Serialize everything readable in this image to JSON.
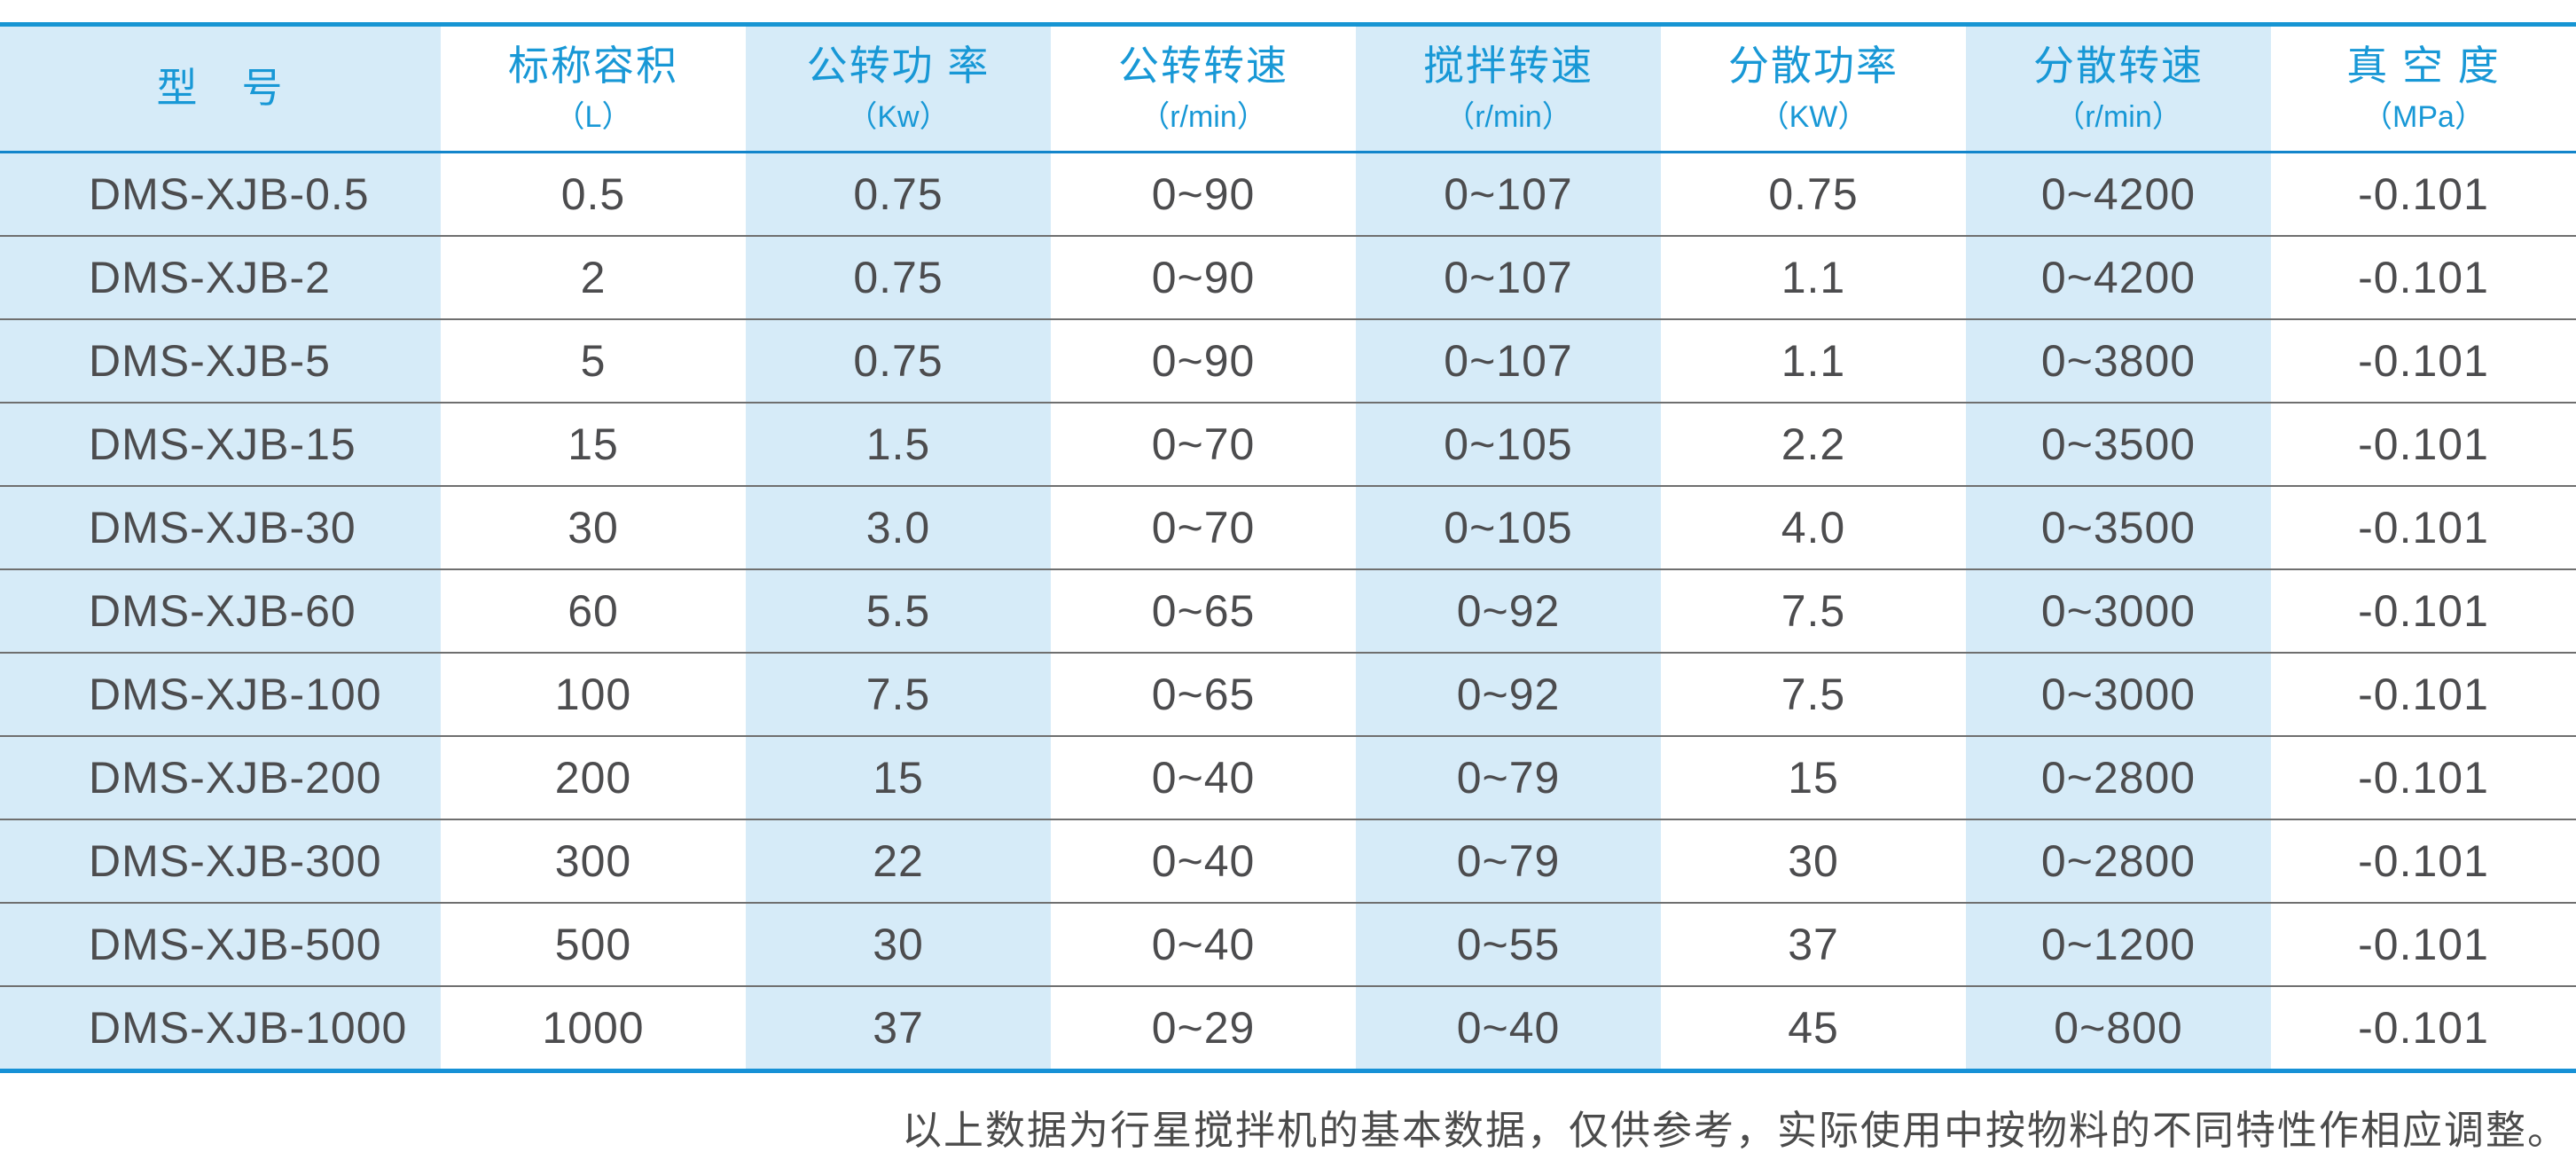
{
  "table": {
    "columns": [
      {
        "label": "型　号",
        "unit": ""
      },
      {
        "label": "标称容积",
        "unit": "（L）"
      },
      {
        "label": "公转功 率",
        "unit": "（Kw）"
      },
      {
        "label": "公转转速",
        "unit": "（r/min）"
      },
      {
        "label": "搅拌转速",
        "unit": "（r/min）"
      },
      {
        "label": "分散功率",
        "unit": "（KW）"
      },
      {
        "label": "分散转速",
        "unit": "（r/min）"
      },
      {
        "label": "真 空 度",
        "unit": "（MPa）"
      }
    ],
    "rows": [
      [
        "DMS-XJB-0.5",
        "0.5",
        "0.75",
        "0~90",
        "0~107",
        "0.75",
        "0~4200",
        "-0.101"
      ],
      [
        "DMS-XJB-2",
        "2",
        "0.75",
        "0~90",
        "0~107",
        "1.1",
        "0~4200",
        "-0.101"
      ],
      [
        "DMS-XJB-5",
        "5",
        "0.75",
        "0~90",
        "0~107",
        "1.1",
        "0~3800",
        "-0.101"
      ],
      [
        "DMS-XJB-15",
        "15",
        "1.5",
        "0~70",
        "0~105",
        "2.2",
        "0~3500",
        "-0.101"
      ],
      [
        "DMS-XJB-30",
        "30",
        "3.0",
        "0~70",
        "0~105",
        "4.0",
        "0~3500",
        "-0.101"
      ],
      [
        "DMS-XJB-60",
        "60",
        "5.5",
        "0~65",
        "0~92",
        "7.5",
        "0~3000",
        "-0.101"
      ],
      [
        "DMS-XJB-100",
        "100",
        "7.5",
        "0~65",
        "0~92",
        "7.5",
        "0~3000",
        "-0.101"
      ],
      [
        "DMS-XJB-200",
        "200",
        "15",
        "0~40",
        "0~79",
        "15",
        "0~2800",
        "-0.101"
      ],
      [
        "DMS-XJB-300",
        "300",
        "22",
        "0~40",
        "0~79",
        "30",
        "0~2800",
        "-0.101"
      ],
      [
        "DMS-XJB-500",
        "500",
        "30",
        "0~40",
        "0~55",
        "37",
        "0~1200",
        "-0.101"
      ],
      [
        "DMS-XJB-1000",
        "1000",
        "37",
        "0~29",
        "0~40",
        "45",
        "0~800",
        "-0.101"
      ]
    ]
  },
  "footer": {
    "note": "以上数据为行星搅拌机的基本数据，仅供参考，实际使用中按物料的不同特性作相应调整。"
  },
  "colors": {
    "accent_blue": "#1795d3",
    "header_text_blue": "#1898d6",
    "stripe_light_blue": "#d6ebf8",
    "row_separator_gray": "#6f6f6f",
    "body_text_gray": "#4c4c4e"
  }
}
